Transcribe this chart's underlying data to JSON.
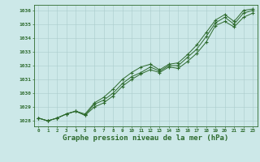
{
  "title": "Graphe pression niveau de la mer (hPa)",
  "xlabel_hours": [
    0,
    1,
    2,
    3,
    4,
    5,
    6,
    7,
    8,
    9,
    10,
    11,
    12,
    13,
    14,
    15,
    16,
    17,
    18,
    19,
    20,
    21,
    22,
    23
  ],
  "series1": [
    1028.2,
    1028.0,
    1028.2,
    1028.5,
    1028.7,
    1028.4,
    1029.2,
    1029.5,
    1030.0,
    1030.7,
    1031.2,
    1031.5,
    1031.9,
    1031.6,
    1032.0,
    1032.0,
    1032.6,
    1033.2,
    1034.1,
    1035.1,
    1035.5,
    1035.0,
    1035.8,
    1036.0
  ],
  "series2": [
    1028.2,
    1028.0,
    1028.2,
    1028.5,
    1028.7,
    1028.5,
    1029.3,
    1029.7,
    1030.3,
    1031.0,
    1031.5,
    1031.9,
    1032.1,
    1031.7,
    1032.1,
    1032.2,
    1032.8,
    1033.5,
    1034.4,
    1035.3,
    1035.7,
    1035.2,
    1036.0,
    1036.1
  ],
  "series3": [
    1028.2,
    1028.0,
    1028.2,
    1028.5,
    1028.7,
    1028.4,
    1029.0,
    1029.3,
    1029.8,
    1030.5,
    1031.0,
    1031.4,
    1031.7,
    1031.5,
    1031.9,
    1031.8,
    1032.3,
    1032.9,
    1033.7,
    1034.9,
    1035.2,
    1034.8,
    1035.5,
    1035.8
  ],
  "line_color": "#2d6a2d",
  "marker_color": "#2d6a2d",
  "bg_color": "#cce8e8",
  "grid_color": "#aacccc",
  "ylim": [
    1027.6,
    1036.4
  ],
  "yticks": [
    1028,
    1029,
    1030,
    1031,
    1032,
    1033,
    1034,
    1035,
    1036
  ],
  "title_color": "#2d6a2d",
  "title_fontsize": 6.5
}
